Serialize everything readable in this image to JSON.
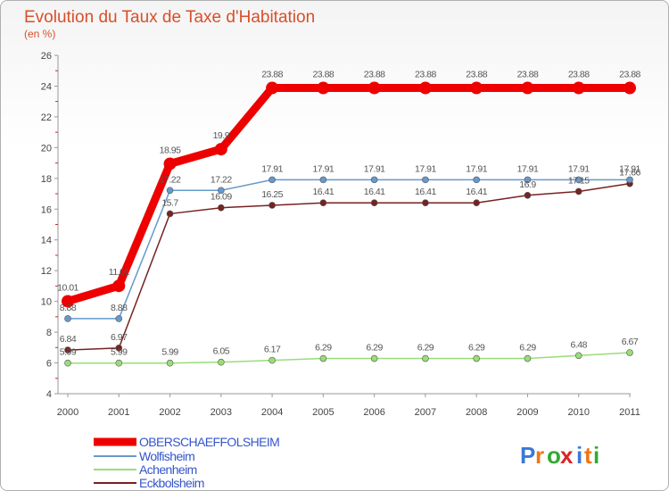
{
  "chart_data": {
    "type": "line",
    "title": "Evolution du Taux de Taxe d'Habitation",
    "subtitle": "(en %)",
    "x": [
      "2000",
      "2001",
      "2002",
      "2003",
      "2004",
      "2005",
      "2006",
      "2007",
      "2008",
      "2009",
      "2010",
      "2011"
    ],
    "ylim": [
      4,
      26
    ],
    "yticks": [
      4,
      6,
      8,
      10,
      12,
      14,
      16,
      18,
      20,
      22,
      24,
      26
    ],
    "grid": false,
    "legend": "bottom-left",
    "series": [
      {
        "name": "OBERSCHAEFFOLSHEIM",
        "color": "#ee0000",
        "values": [
          10.01,
          11.01,
          18.95,
          19.9,
          23.88,
          23.88,
          23.88,
          23.88,
          23.88,
          23.88,
          23.88,
          23.88
        ],
        "labels": [
          "10.01",
          "11.01",
          "18.95",
          "19.9",
          "23.88",
          "23.88",
          "23.88",
          "23.88",
          "23.88",
          "23.88",
          "23.88",
          "23.88"
        ]
      },
      {
        "name": "Wolfisheim",
        "color": "#6699cc",
        "values": [
          8.88,
          8.88,
          17.22,
          17.22,
          17.91,
          17.91,
          17.91,
          17.91,
          17.91,
          17.91,
          17.91,
          17.91
        ],
        "labels": [
          "8.88",
          "8.88",
          "17.22",
          "17.22",
          "17.91",
          "17.91",
          "17.91",
          "17.91",
          "17.91",
          "17.91",
          "17.91",
          "17.91"
        ]
      },
      {
        "name": "Achenheim",
        "color": "#99dd77",
        "values": [
          5.99,
          5.99,
          5.99,
          6.05,
          6.17,
          6.29,
          6.29,
          6.29,
          6.29,
          6.29,
          6.48,
          6.67
        ],
        "labels": [
          "5.99",
          "5.99",
          "5.99",
          "6.05",
          "6.17",
          "6.29",
          "6.29",
          "6.29",
          "6.29",
          "6.29",
          "6.48",
          "6.67"
        ]
      },
      {
        "name": "Eckbolsheim",
        "color": "#772222",
        "values": [
          6.84,
          6.97,
          15.7,
          16.09,
          16.25,
          16.41,
          16.41,
          16.41,
          16.41,
          16.9,
          17.15,
          17.66
        ],
        "labels": [
          "6.84",
          "6.97",
          "15.7",
          "16.09",
          "16.25",
          "16.41",
          "16.41",
          "16.41",
          "16.41",
          "16.9",
          "17.15",
          "17.66"
        ]
      }
    ]
  },
  "logo": {
    "text": "Proxiti"
  }
}
